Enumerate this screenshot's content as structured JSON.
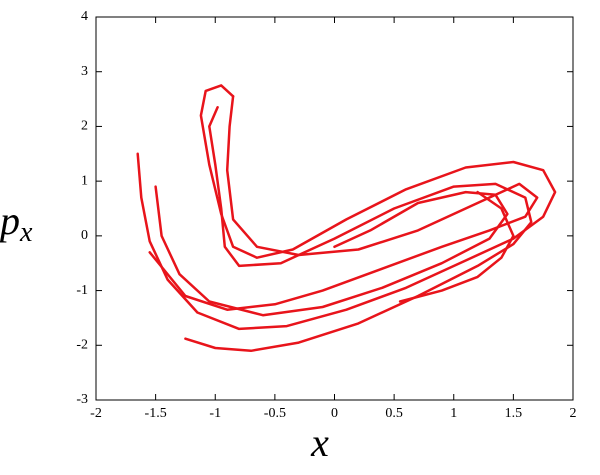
{
  "chart_data": {
    "type": "line",
    "xlabel": "x",
    "ylabel": {
      "base": "p",
      "subscript": "x"
    },
    "xlim": [
      -2,
      2
    ],
    "ylim": [
      -3,
      4
    ],
    "xticks": [
      -2,
      -1.5,
      -1,
      -0.5,
      0,
      0.5,
      1,
      1.5,
      2
    ],
    "yticks": [
      -3,
      -2,
      -1,
      0,
      1,
      2,
      3,
      4
    ],
    "series": [
      {
        "color": "#e8141b",
        "x": [
          -1.65,
          -1.62,
          -1.55,
          -1.4,
          -1.15,
          -0.8,
          -0.4,
          0.1,
          0.6,
          1.1,
          1.5,
          1.75,
          1.85,
          1.75,
          1.5,
          1.1,
          0.6,
          0.1,
          -0.35,
          -0.65,
          -0.85,
          -0.95,
          -1.05,
          -1.12,
          -1.08,
          -0.95,
          -0.85
        ],
        "y": [
          1.5,
          0.7,
          -0.1,
          -0.8,
          -1.4,
          -1.7,
          -1.65,
          -1.35,
          -0.95,
          -0.45,
          -0.05,
          0.35,
          0.8,
          1.2,
          1.35,
          1.25,
          0.85,
          0.3,
          -0.25,
          -0.4,
          -0.2,
          0.4,
          1.3,
          2.2,
          2.65,
          2.75,
          2.55
        ]
      },
      {
        "color": "#e8141b",
        "x": [
          -0.85,
          -0.88,
          -0.9,
          -0.85,
          -0.65,
          -0.3,
          0.2,
          0.7,
          1.2,
          1.55,
          1.7,
          1.6,
          1.3,
          0.9,
          0.4,
          -0.1,
          -0.5,
          -0.9,
          -1.25,
          -1.55
        ],
        "y": [
          2.55,
          2.0,
          1.2,
          0.3,
          -0.2,
          -0.35,
          -0.25,
          0.1,
          0.6,
          0.95,
          0.7,
          0.35,
          0.1,
          -0.2,
          -0.6,
          -1.0,
          -1.25,
          -1.35,
          -1.1,
          -0.3
        ]
      },
      {
        "color": "#e8141b",
        "x": [
          -1.25,
          -1.0,
          -0.7,
          -0.3,
          0.2,
          0.7,
          1.2,
          1.5,
          1.65,
          1.6,
          1.35,
          1.0,
          0.5,
          0.0,
          -0.45,
          -0.8,
          -0.92,
          -0.95,
          -1.0,
          -1.05,
          -0.98
        ],
        "y": [
          -1.88,
          -2.05,
          -2.1,
          -1.95,
          -1.6,
          -1.1,
          -0.55,
          -0.15,
          0.25,
          0.7,
          0.95,
          0.9,
          0.5,
          -0.05,
          -0.5,
          -0.55,
          -0.2,
          0.5,
          1.3,
          2.0,
          2.35
        ]
      },
      {
        "color": "#e8141b",
        "x": [
          -1.5,
          -1.45,
          -1.3,
          -1.05,
          -0.6,
          -0.1,
          0.4,
          0.9,
          1.3,
          1.45,
          1.35,
          1.1,
          0.7,
          0.3,
          0.0
        ],
        "y": [
          0.9,
          0.0,
          -0.7,
          -1.2,
          -1.45,
          -1.3,
          -0.95,
          -0.5,
          -0.05,
          0.4,
          0.75,
          0.8,
          0.6,
          0.1,
          -0.2
        ]
      },
      {
        "color": "#e8141b",
        "x": [
          0.55,
          0.9,
          1.2,
          1.4,
          1.5,
          1.4,
          1.2
        ],
        "y": [
          -1.2,
          -1.0,
          -0.75,
          -0.4,
          0.0,
          0.5,
          0.8
        ]
      }
    ]
  }
}
